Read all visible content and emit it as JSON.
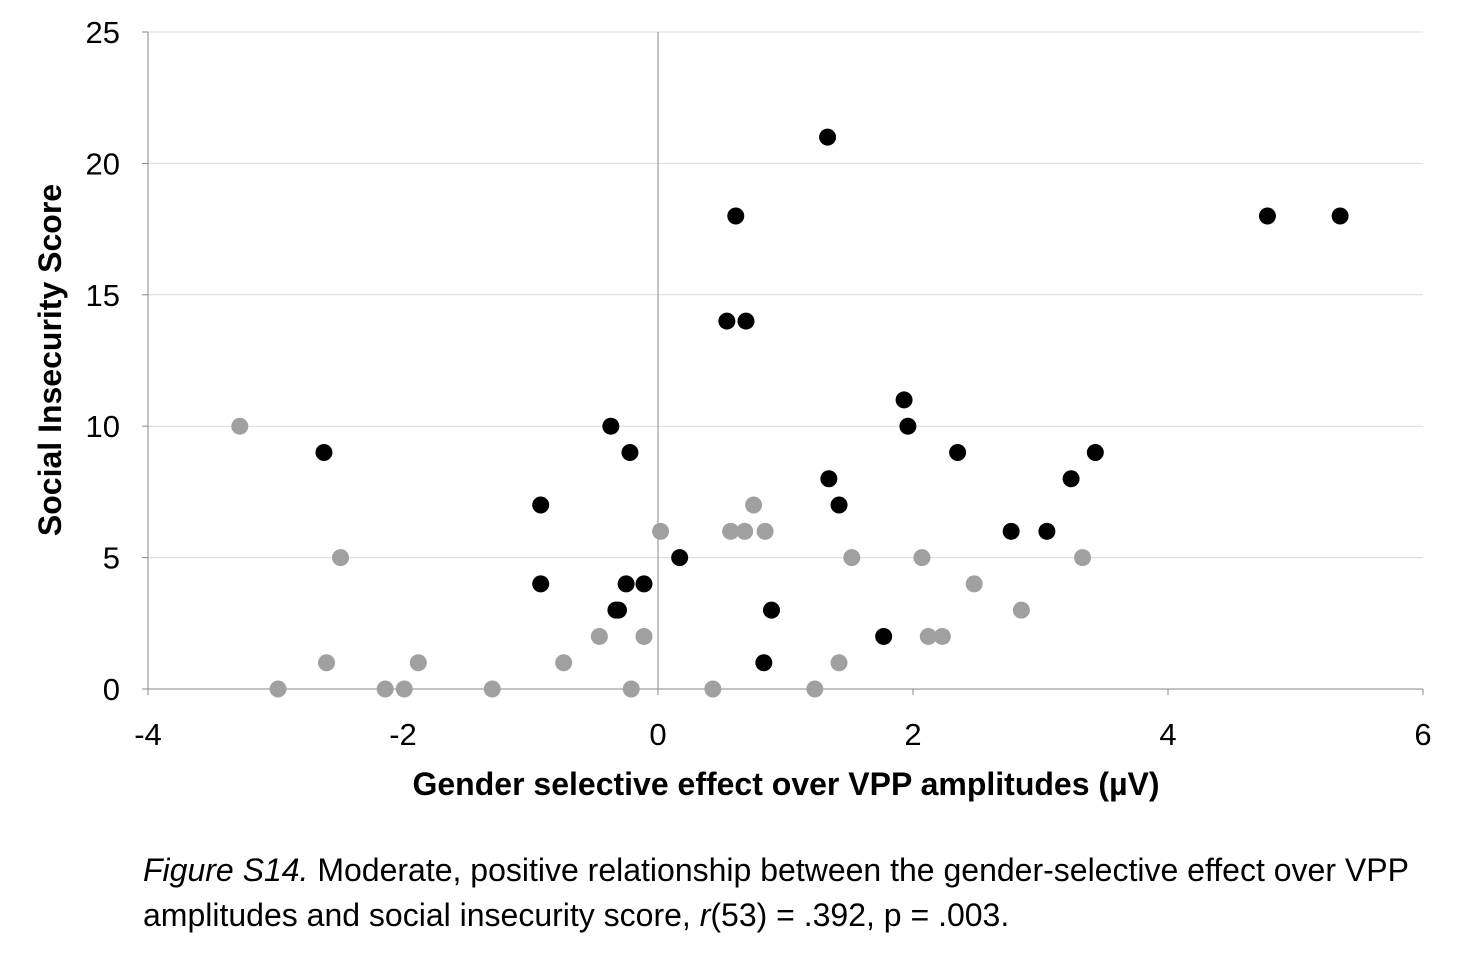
{
  "chart_data": {
    "type": "scatter",
    "title": "",
    "xlabel": "Gender selective effect over VPP amplitudes  (µV)",
    "ylabel": "Social Insecurity Score",
    "xlim": [
      -4,
      6
    ],
    "ylim": [
      0,
      25
    ],
    "xticks": [
      "-4",
      "-2",
      "0",
      "2",
      "4",
      "6"
    ],
    "yticks": [
      "0",
      "5",
      "10",
      "15",
      "20",
      "25"
    ],
    "grid": "horizontal",
    "legend": "none",
    "series": [
      {
        "color": "#000000",
        "points": [
          [
            1.33,
            21
          ],
          [
            0.61,
            18
          ],
          [
            4.78,
            18
          ],
          [
            5.35,
            18
          ],
          [
            0.54,
            14
          ],
          [
            0.69,
            14
          ],
          [
            1.93,
            11
          ],
          [
            1.96,
            10
          ],
          [
            -0.37,
            10
          ],
          [
            -2.62,
            9
          ],
          [
            -0.22,
            9
          ],
          [
            2.35,
            9
          ],
          [
            3.43,
            9
          ],
          [
            1.34,
            8
          ],
          [
            3.24,
            8
          ],
          [
            -0.92,
            7
          ],
          [
            1.42,
            7
          ],
          [
            2.77,
            6
          ],
          [
            3.05,
            6
          ],
          [
            0.17,
            5
          ],
          [
            -0.92,
            4
          ],
          [
            -0.25,
            4
          ],
          [
            -0.11,
            4
          ],
          [
            -0.33,
            3
          ],
          [
            -0.31,
            3
          ],
          [
            0.89,
            3
          ],
          [
            1.77,
            2
          ],
          [
            0.83,
            1
          ]
        ]
      },
      {
        "color": "#a0a0a0",
        "points": [
          [
            -3.28,
            10
          ],
          [
            -2.49,
            5
          ],
          [
            0.02,
            6
          ],
          [
            0.57,
            6
          ],
          [
            0.68,
            6
          ],
          [
            0.75,
            7
          ],
          [
            0.84,
            6
          ],
          [
            1.52,
            5
          ],
          [
            2.07,
            5
          ],
          [
            3.33,
            5
          ],
          [
            2.48,
            4
          ],
          [
            2.85,
            3
          ],
          [
            -0.46,
            2
          ],
          [
            -0.11,
            2
          ],
          [
            2.12,
            2
          ],
          [
            2.23,
            2
          ],
          [
            -2.6,
            1
          ],
          [
            -1.88,
            1
          ],
          [
            -0.74,
            1
          ],
          [
            1.42,
            1
          ],
          [
            -2.98,
            0
          ],
          [
            -2.14,
            0
          ],
          [
            -1.99,
            0
          ],
          [
            -1.3,
            0
          ],
          [
            -0.21,
            0
          ],
          [
            0.43,
            0
          ],
          [
            1.23,
            0
          ]
        ]
      }
    ]
  },
  "caption": {
    "lead": "Figure S14.",
    "body": " Moderate, positive relationship between the gender-selective effect over VPP amplitudes and social insecurity score, ",
    "stat_r": "r",
    "tail": "(53) = .392, p = .003."
  }
}
